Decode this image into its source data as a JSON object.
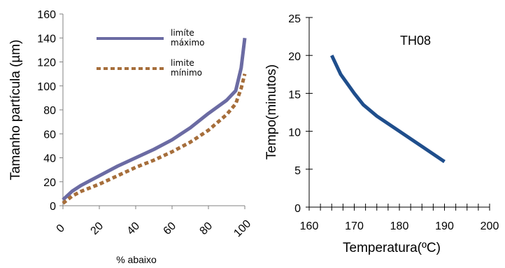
{
  "chart_data": [
    {
      "type": "line",
      "xlabel": "% abaixo",
      "ylabel": "Tamanho  partícula (µm)",
      "xlim": [
        0,
        100
      ],
      "ylim": [
        0,
        160
      ],
      "x_ticks": [
        "0",
        "20",
        "40",
        "60",
        "80",
        "100"
      ],
      "y_ticks": [
        "0",
        "20",
        "40",
        "60",
        "80",
        "100",
        "120",
        "140",
        "160"
      ],
      "legend_position": "top-left",
      "series": [
        {
          "name_line1": "limíte",
          "name_line2": "máximo",
          "color": "#6B6BA3",
          "style": "solid",
          "x": [
            0,
            5,
            10,
            20,
            30,
            40,
            50,
            60,
            70,
            80,
            90,
            95,
            98,
            100
          ],
          "y": [
            5,
            12,
            17,
            25,
            33,
            40,
            47,
            55,
            65,
            77,
            88,
            96,
            115,
            140
          ]
        },
        {
          "name_line1": "limite",
          "name_line2": "mínimo",
          "color": "#A66E3B",
          "style": "dashed",
          "x": [
            0,
            5,
            10,
            20,
            30,
            40,
            50,
            60,
            70,
            80,
            90,
            95,
            98,
            100
          ],
          "y": [
            2,
            8,
            12,
            18,
            25,
            32,
            38,
            45,
            53,
            63,
            76,
            85,
            98,
            110
          ]
        }
      ]
    },
    {
      "type": "line",
      "xlabel": "Temperatura(ºC)",
      "ylabel": "Tempo(minutos)",
      "xlim": [
        160,
        200
      ],
      "ylim": [
        0,
        25
      ],
      "x_ticks": [
        "160",
        "170",
        "180",
        "190",
        "200"
      ],
      "y_ticks": [
        "0",
        "5",
        "10",
        "15",
        "20",
        "25"
      ],
      "annotation": "TH08",
      "series": [
        {
          "color": "#1F4E8C",
          "x": [
            165,
            167,
            170,
            172,
            175,
            180,
            185,
            190
          ],
          "y": [
            20,
            17.5,
            15,
            13.5,
            12,
            10,
            8,
            6
          ]
        }
      ]
    }
  ]
}
